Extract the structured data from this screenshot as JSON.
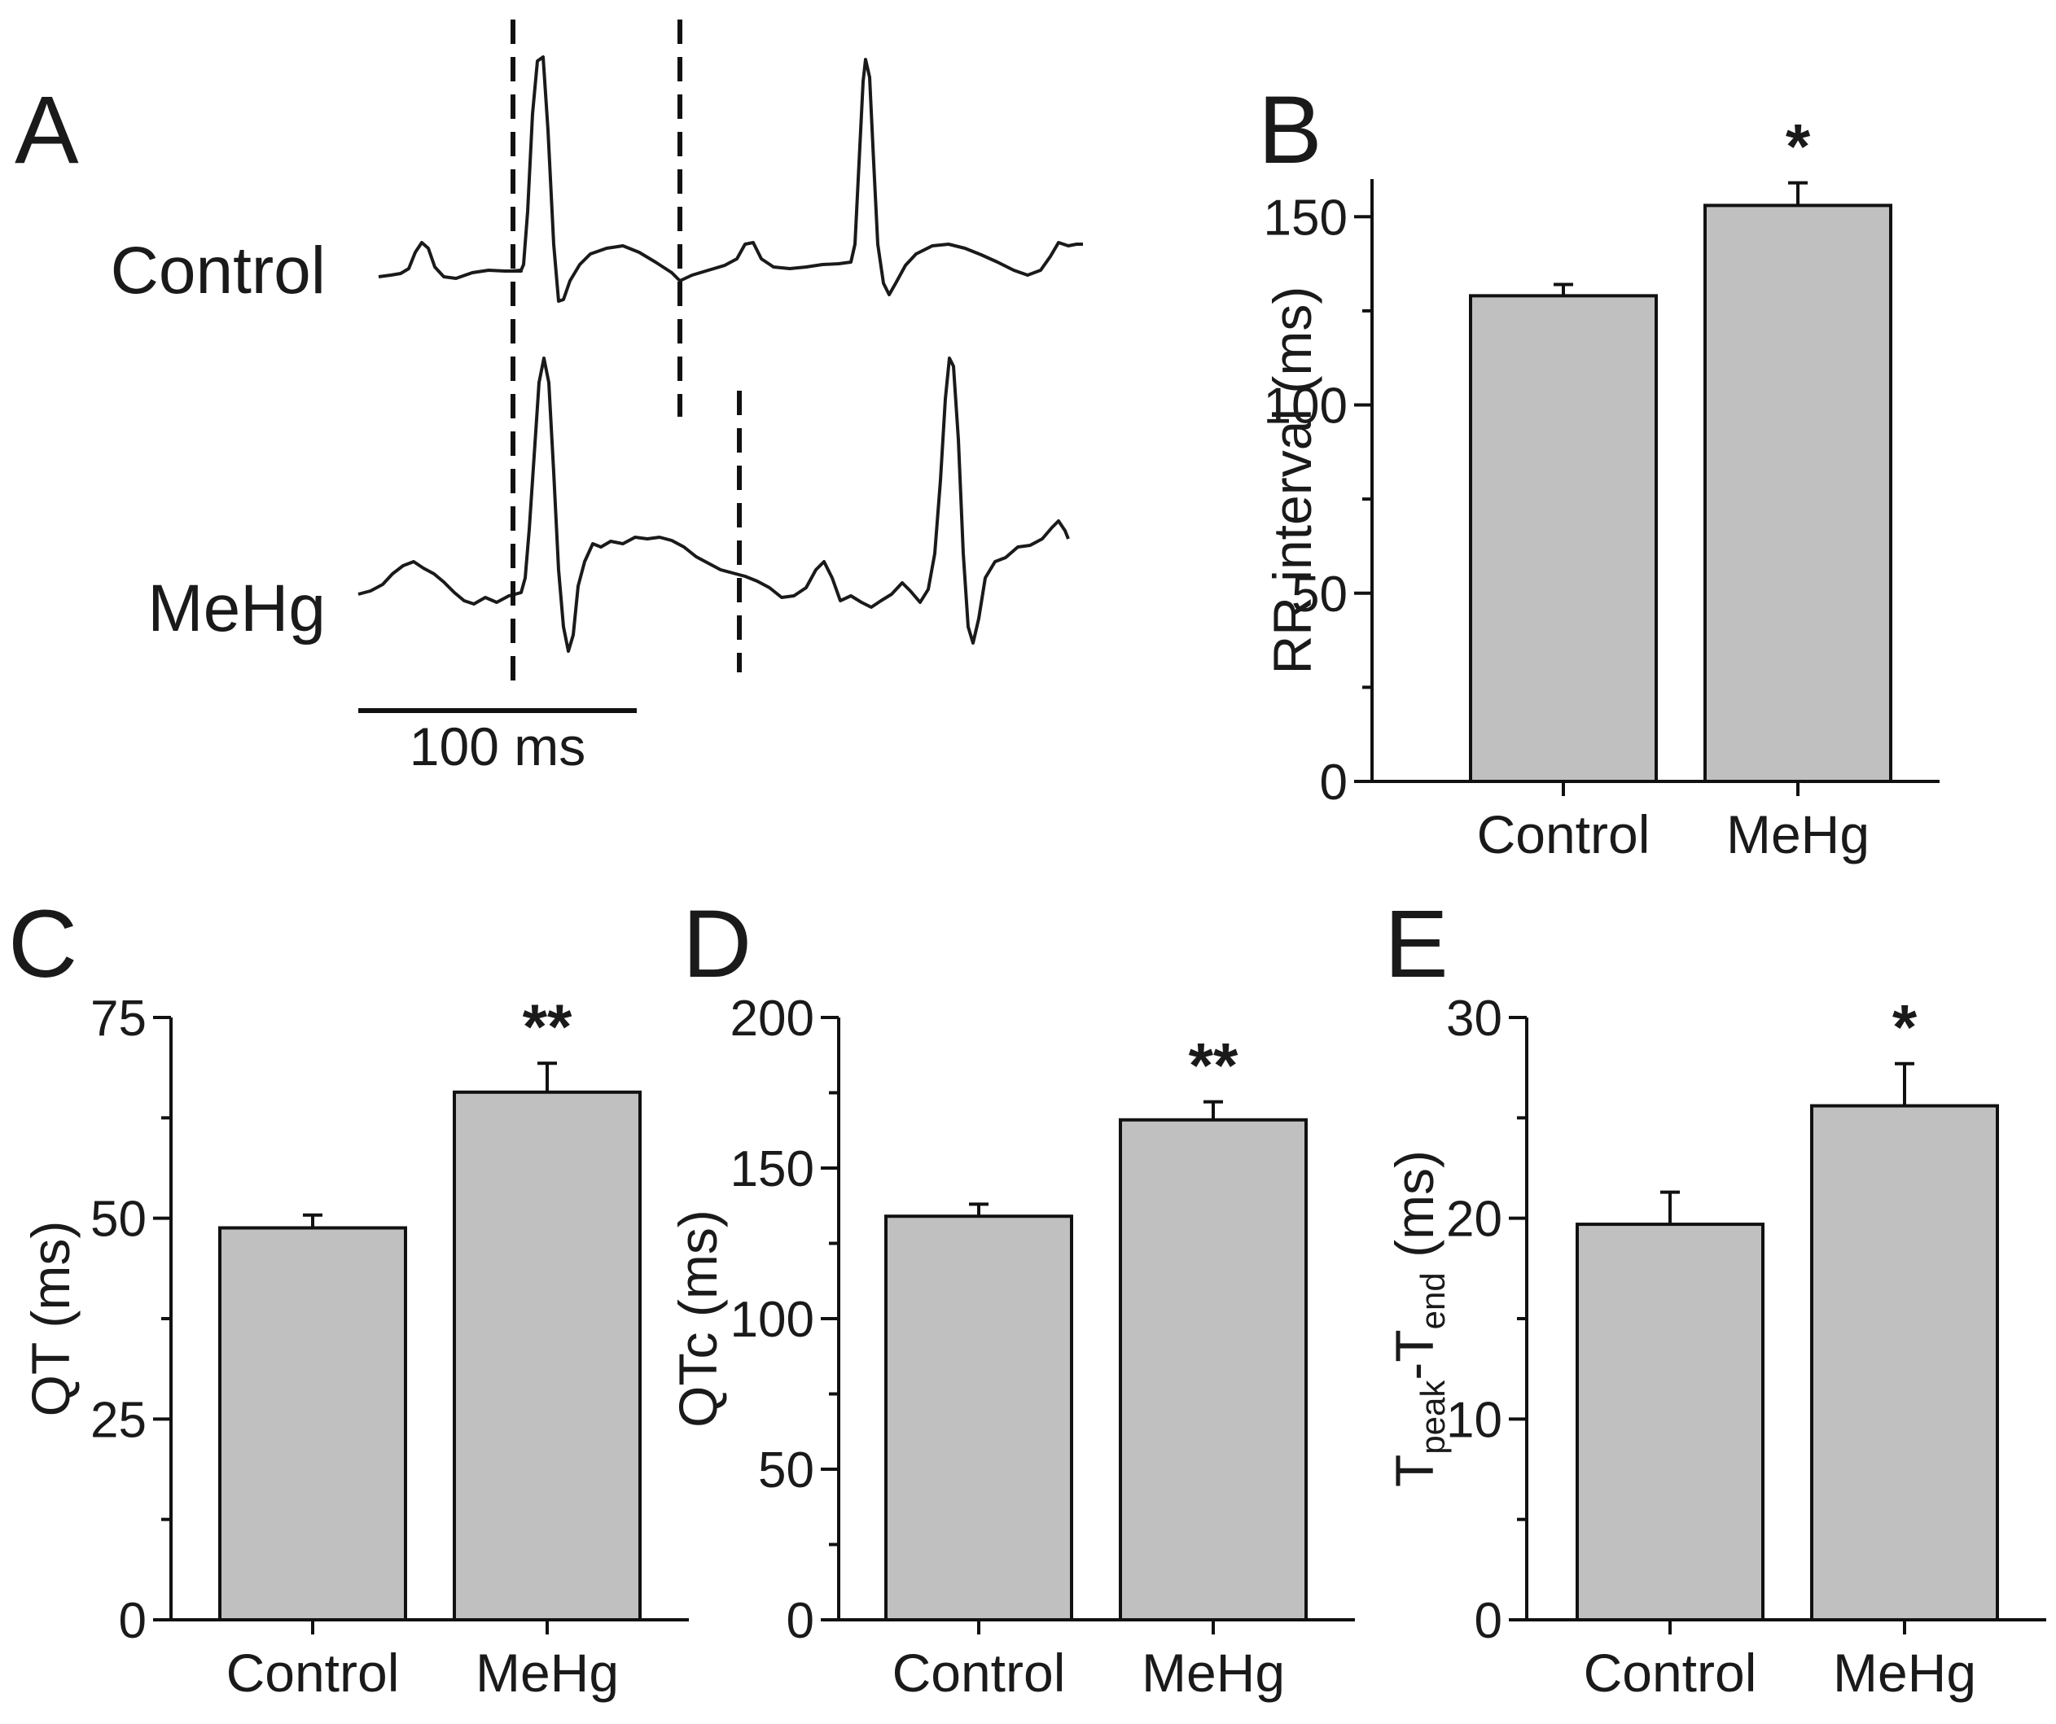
{
  "figure": {
    "panel_a": {
      "letter": "A",
      "traces": [
        {
          "label": "Control"
        },
        {
          "label": "MeHg"
        }
      ],
      "scale_bar": {
        "label": "100 ms",
        "value_ms": 100
      }
    }
  },
  "chart_data": [
    {
      "panel": "B",
      "type": "bar",
      "categories": [
        "Control",
        "MeHg"
      ],
      "values": [
        129,
        153
      ],
      "errors": [
        3,
        6
      ],
      "significance": [
        "",
        "*"
      ],
      "ylabel": "RR interval (ms)",
      "ylim": [
        0,
        160
      ],
      "yticks": [
        0,
        50,
        100,
        150
      ],
      "ytick_labels": [
        "0",
        "50",
        "100",
        "150"
      ]
    },
    {
      "panel": "C",
      "type": "bar",
      "categories": [
        "Control",
        "MeHg"
      ],
      "values": [
        48.8,
        65.7
      ],
      "errors": [
        1.6,
        3.6
      ],
      "significance": [
        "",
        "**"
      ],
      "ylabel": "QT (ms)",
      "ylim": [
        0,
        75
      ],
      "yticks": [
        0,
        25,
        50,
        75
      ],
      "ytick_labels": [
        "0",
        "25",
        "50",
        "75"
      ]
    },
    {
      "panel": "D",
      "type": "bar",
      "categories": [
        "Control",
        "MeHg"
      ],
      "values": [
        134,
        166
      ],
      "errors": [
        4,
        6
      ],
      "significance": [
        "",
        "**"
      ],
      "ylabel": "QTc (ms)",
      "ylim": [
        0,
        200
      ],
      "yticks": [
        0,
        50,
        100,
        150,
        200
      ],
      "ytick_labels": [
        "0",
        "50",
        "100",
        "150",
        "200"
      ]
    },
    {
      "panel": "E",
      "type": "bar",
      "categories": [
        "Control",
        "MeHg"
      ],
      "values": [
        19.7,
        25.6
      ],
      "errors": [
        1.6,
        2.1
      ],
      "significance": [
        "",
        "*"
      ],
      "ylabel": "T",
      "ylabel_sub1": "peak",
      "ylabel_mid": "-T",
      "ylabel_sub2": "end",
      "ylabel_tail": " (ms)",
      "ylim": [
        0,
        30
      ],
      "yticks": [
        0,
        10,
        20,
        30
      ],
      "ytick_labels": [
        "0",
        "10",
        "20",
        "30"
      ]
    }
  ]
}
